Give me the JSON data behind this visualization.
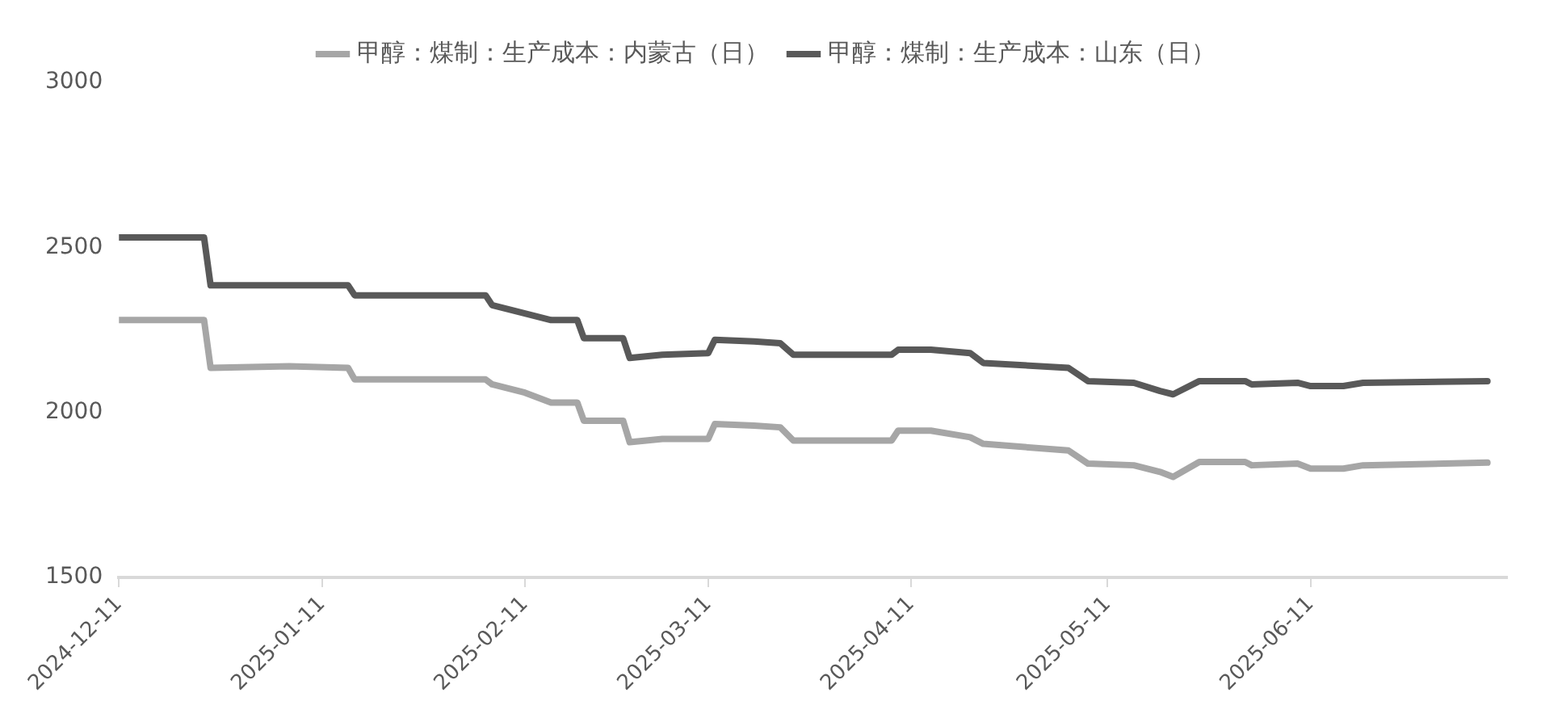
{
  "chart_data": {
    "type": "line",
    "x": [
      "2024-12-11",
      "2024-12-24",
      "2024-12-25",
      "2025-01-06",
      "2025-01-15",
      "2025-01-16",
      "2025-02-05",
      "2025-02-06",
      "2025-02-11",
      "2025-02-15",
      "2025-02-19",
      "2025-02-20",
      "2025-02-26",
      "2025-02-27",
      "2025-03-04",
      "2025-03-11",
      "2025-03-12",
      "2025-03-18",
      "2025-03-22",
      "2025-03-24",
      "2025-04-08",
      "2025-04-09",
      "2025-04-14",
      "2025-04-20",
      "2025-04-22",
      "2025-05-05",
      "2025-05-08",
      "2025-05-15",
      "2025-05-19",
      "2025-05-21",
      "2025-05-25",
      "2025-06-01",
      "2025-06-02",
      "2025-06-09",
      "2025-06-11",
      "2025-06-16",
      "2025-06-19",
      "2025-07-08"
    ],
    "series": [
      {
        "name": "甲醇：煤制：生产成本：内蒙古（日）",
        "color": "#a6a6a6",
        "values": [
          2280,
          2280,
          2135,
          2140,
          2135,
          2100,
          2100,
          2085,
          2060,
          2030,
          2030,
          1975,
          1975,
          1910,
          1920,
          1920,
          1965,
          1960,
          1955,
          1915,
          1915,
          1945,
          1945,
          1925,
          1905,
          1885,
          1845,
          1840,
          1820,
          1805,
          1850,
          1850,
          1840,
          1845,
          1830,
          1830,
          1840,
          1848
        ]
      },
      {
        "name": "甲醇：煤制：生产成本：山东（日）",
        "color": "#595959",
        "values": [
          2530,
          2530,
          2385,
          2385,
          2385,
          2355,
          2355,
          2325,
          2300,
          2280,
          2280,
          2225,
          2225,
          2165,
          2175,
          2180,
          2220,
          2215,
          2210,
          2175,
          2175,
          2190,
          2190,
          2180,
          2150,
          2135,
          2095,
          2090,
          2065,
          2055,
          2095,
          2095,
          2085,
          2090,
          2080,
          2080,
          2090,
          2095
        ]
      }
    ],
    "xlim": [
      "2024-12-11",
      "2025-07-11"
    ],
    "xticks": [
      "2024-12-11",
      "2025-01-11",
      "2025-02-11",
      "2025-03-11",
      "2025-04-11",
      "2025-05-11",
      "2025-06-11"
    ],
    "ylim": [
      1500,
      3000
    ],
    "yticks": [
      1500,
      2000,
      2500,
      3000
    ],
    "grid": false,
    "legend": "top",
    "marker": "none",
    "line_style": "solid"
  }
}
